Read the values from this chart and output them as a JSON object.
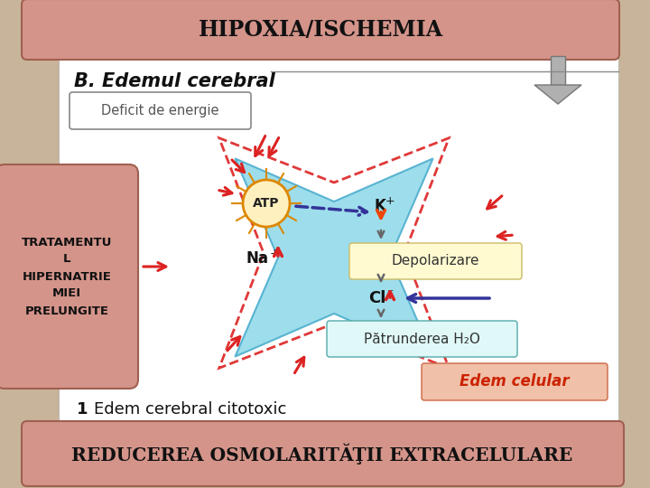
{
  "background_color": "#c8b49a",
  "top_banner_color": "#d4948a",
  "top_banner_text": "HIPOXIA/ISCHEMIA",
  "top_banner_text_color": "#111111",
  "bottom_banner_color": "#d4948a",
  "bottom_banner_text": "REDUCEREA OSMOLARITĂŢII EXTRACELULARE",
  "bottom_banner_text_color": "#111111",
  "left_box_color": "#d4948a",
  "left_box_text": "TRATAMENTU\nL\nHIPERNATRIE\nMIEI\nPRELUNGITE",
  "left_box_text_color": "#111111",
  "arrow_color": "#999999",
  "fig_width": 7.2,
  "fig_height": 5.4,
  "dpi": 100
}
